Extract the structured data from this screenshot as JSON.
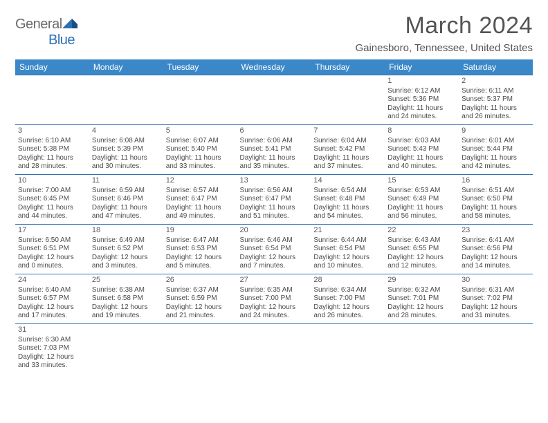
{
  "logo": {
    "textGray": "General",
    "textBlue": "Blue"
  },
  "title": "March 2024",
  "location": "Gainesboro, Tennessee, United States",
  "colors": {
    "headerBg": "#3b88c9",
    "headerBorder": "#2d6fb5",
    "cellBorder": "#2d6fb5",
    "logoGray": "#6c6c6c",
    "logoBlue": "#2d6fb5",
    "titleColor": "#545454",
    "textColor": "#4a4a4a"
  },
  "weekdays": [
    "Sunday",
    "Monday",
    "Tuesday",
    "Wednesday",
    "Thursday",
    "Friday",
    "Saturday"
  ],
  "weeks": [
    [
      null,
      null,
      null,
      null,
      null,
      {
        "d": "1",
        "sr": "Sunrise: 6:12 AM",
        "ss": "Sunset: 5:36 PM",
        "dl1": "Daylight: 11 hours",
        "dl2": "and 24 minutes."
      },
      {
        "d": "2",
        "sr": "Sunrise: 6:11 AM",
        "ss": "Sunset: 5:37 PM",
        "dl1": "Daylight: 11 hours",
        "dl2": "and 26 minutes."
      }
    ],
    [
      {
        "d": "3",
        "sr": "Sunrise: 6:10 AM",
        "ss": "Sunset: 5:38 PM",
        "dl1": "Daylight: 11 hours",
        "dl2": "and 28 minutes."
      },
      {
        "d": "4",
        "sr": "Sunrise: 6:08 AM",
        "ss": "Sunset: 5:39 PM",
        "dl1": "Daylight: 11 hours",
        "dl2": "and 30 minutes."
      },
      {
        "d": "5",
        "sr": "Sunrise: 6:07 AM",
        "ss": "Sunset: 5:40 PM",
        "dl1": "Daylight: 11 hours",
        "dl2": "and 33 minutes."
      },
      {
        "d": "6",
        "sr": "Sunrise: 6:06 AM",
        "ss": "Sunset: 5:41 PM",
        "dl1": "Daylight: 11 hours",
        "dl2": "and 35 minutes."
      },
      {
        "d": "7",
        "sr": "Sunrise: 6:04 AM",
        "ss": "Sunset: 5:42 PM",
        "dl1": "Daylight: 11 hours",
        "dl2": "and 37 minutes."
      },
      {
        "d": "8",
        "sr": "Sunrise: 6:03 AM",
        "ss": "Sunset: 5:43 PM",
        "dl1": "Daylight: 11 hours",
        "dl2": "and 40 minutes."
      },
      {
        "d": "9",
        "sr": "Sunrise: 6:01 AM",
        "ss": "Sunset: 5:44 PM",
        "dl1": "Daylight: 11 hours",
        "dl2": "and 42 minutes."
      }
    ],
    [
      {
        "d": "10",
        "sr": "Sunrise: 7:00 AM",
        "ss": "Sunset: 6:45 PM",
        "dl1": "Daylight: 11 hours",
        "dl2": "and 44 minutes."
      },
      {
        "d": "11",
        "sr": "Sunrise: 6:59 AM",
        "ss": "Sunset: 6:46 PM",
        "dl1": "Daylight: 11 hours",
        "dl2": "and 47 minutes."
      },
      {
        "d": "12",
        "sr": "Sunrise: 6:57 AM",
        "ss": "Sunset: 6:47 PM",
        "dl1": "Daylight: 11 hours",
        "dl2": "and 49 minutes."
      },
      {
        "d": "13",
        "sr": "Sunrise: 6:56 AM",
        "ss": "Sunset: 6:47 PM",
        "dl1": "Daylight: 11 hours",
        "dl2": "and 51 minutes."
      },
      {
        "d": "14",
        "sr": "Sunrise: 6:54 AM",
        "ss": "Sunset: 6:48 PM",
        "dl1": "Daylight: 11 hours",
        "dl2": "and 54 minutes."
      },
      {
        "d": "15",
        "sr": "Sunrise: 6:53 AM",
        "ss": "Sunset: 6:49 PM",
        "dl1": "Daylight: 11 hours",
        "dl2": "and 56 minutes."
      },
      {
        "d": "16",
        "sr": "Sunrise: 6:51 AM",
        "ss": "Sunset: 6:50 PM",
        "dl1": "Daylight: 11 hours",
        "dl2": "and 58 minutes."
      }
    ],
    [
      {
        "d": "17",
        "sr": "Sunrise: 6:50 AM",
        "ss": "Sunset: 6:51 PM",
        "dl1": "Daylight: 12 hours",
        "dl2": "and 0 minutes."
      },
      {
        "d": "18",
        "sr": "Sunrise: 6:49 AM",
        "ss": "Sunset: 6:52 PM",
        "dl1": "Daylight: 12 hours",
        "dl2": "and 3 minutes."
      },
      {
        "d": "19",
        "sr": "Sunrise: 6:47 AM",
        "ss": "Sunset: 6:53 PM",
        "dl1": "Daylight: 12 hours",
        "dl2": "and 5 minutes."
      },
      {
        "d": "20",
        "sr": "Sunrise: 6:46 AM",
        "ss": "Sunset: 6:54 PM",
        "dl1": "Daylight: 12 hours",
        "dl2": "and 7 minutes."
      },
      {
        "d": "21",
        "sr": "Sunrise: 6:44 AM",
        "ss": "Sunset: 6:54 PM",
        "dl1": "Daylight: 12 hours",
        "dl2": "and 10 minutes."
      },
      {
        "d": "22",
        "sr": "Sunrise: 6:43 AM",
        "ss": "Sunset: 6:55 PM",
        "dl1": "Daylight: 12 hours",
        "dl2": "and 12 minutes."
      },
      {
        "d": "23",
        "sr": "Sunrise: 6:41 AM",
        "ss": "Sunset: 6:56 PM",
        "dl1": "Daylight: 12 hours",
        "dl2": "and 14 minutes."
      }
    ],
    [
      {
        "d": "24",
        "sr": "Sunrise: 6:40 AM",
        "ss": "Sunset: 6:57 PM",
        "dl1": "Daylight: 12 hours",
        "dl2": "and 17 minutes."
      },
      {
        "d": "25",
        "sr": "Sunrise: 6:38 AM",
        "ss": "Sunset: 6:58 PM",
        "dl1": "Daylight: 12 hours",
        "dl2": "and 19 minutes."
      },
      {
        "d": "26",
        "sr": "Sunrise: 6:37 AM",
        "ss": "Sunset: 6:59 PM",
        "dl1": "Daylight: 12 hours",
        "dl2": "and 21 minutes."
      },
      {
        "d": "27",
        "sr": "Sunrise: 6:35 AM",
        "ss": "Sunset: 7:00 PM",
        "dl1": "Daylight: 12 hours",
        "dl2": "and 24 minutes."
      },
      {
        "d": "28",
        "sr": "Sunrise: 6:34 AM",
        "ss": "Sunset: 7:00 PM",
        "dl1": "Daylight: 12 hours",
        "dl2": "and 26 minutes."
      },
      {
        "d": "29",
        "sr": "Sunrise: 6:32 AM",
        "ss": "Sunset: 7:01 PM",
        "dl1": "Daylight: 12 hours",
        "dl2": "and 28 minutes."
      },
      {
        "d": "30",
        "sr": "Sunrise: 6:31 AM",
        "ss": "Sunset: 7:02 PM",
        "dl1": "Daylight: 12 hours",
        "dl2": "and 31 minutes."
      }
    ],
    [
      {
        "d": "31",
        "sr": "Sunrise: 6:30 AM",
        "ss": "Sunset: 7:03 PM",
        "dl1": "Daylight: 12 hours",
        "dl2": "and 33 minutes."
      },
      null,
      null,
      null,
      null,
      null,
      null
    ]
  ]
}
